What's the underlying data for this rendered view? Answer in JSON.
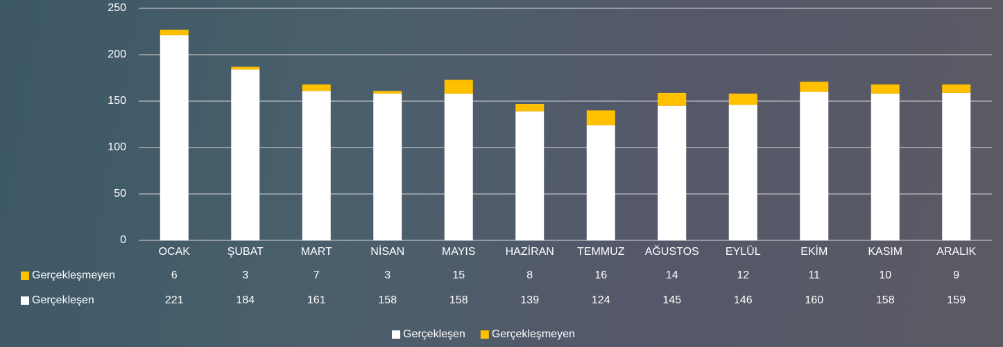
{
  "chart_data": {
    "type": "bar",
    "stacked": true,
    "categories": [
      "OCAK",
      "ŞUBAT",
      "MART",
      "NİSAN",
      "MAYIS",
      "HAZİRAN",
      "TEMMUZ",
      "AĞUSTOS",
      "EYLÜL",
      "EKİM",
      "KASIM",
      "ARALIK"
    ],
    "series": [
      {
        "name": "Gerçekleşen",
        "color": "#ffffff",
        "values": [
          221,
          184,
          161,
          158,
          158,
          139,
          124,
          145,
          146,
          160,
          158,
          159
        ]
      },
      {
        "name": "Gerçekleşmeyen",
        "color": "#ffc000",
        "values": [
          6,
          3,
          7,
          3,
          15,
          8,
          16,
          14,
          12,
          11,
          10,
          9
        ]
      }
    ],
    "ylim": [
      0,
      250
    ],
    "yticks": [
      0,
      50,
      100,
      150,
      200,
      250
    ],
    "grid": true,
    "legend": "bottom",
    "data_table": true
  }
}
